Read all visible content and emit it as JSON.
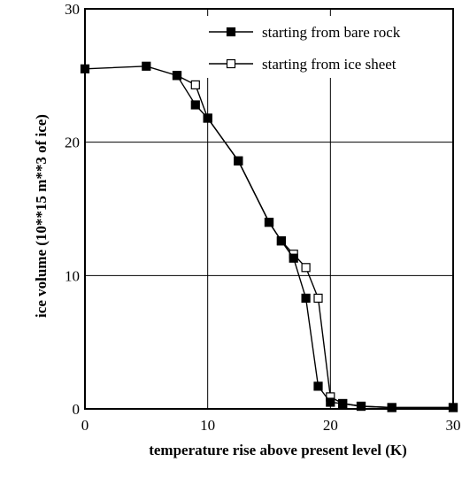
{
  "chart_data": {
    "type": "line",
    "xlabel": "temperature rise above present level (K)",
    "ylabel": "ice volume (10**15 m**3 of ice)",
    "xlim": [
      0,
      30
    ],
    "ylim": [
      0,
      30
    ],
    "xticks": [
      0,
      10,
      20,
      30
    ],
    "yticks": [
      0,
      10,
      20,
      30
    ],
    "grid": true,
    "legend_position": "top-right",
    "series": [
      {
        "name": "starting from bare rock",
        "marker": "filled-square",
        "x": [
          0,
          5,
          7.5,
          9,
          10,
          12.5,
          15,
          16,
          17,
          18,
          19,
          20,
          21,
          22.5,
          25,
          30
        ],
        "y": [
          25.5,
          25.7,
          25.0,
          22.8,
          21.8,
          18.6,
          14.0,
          12.6,
          11.3,
          8.3,
          1.7,
          0.5,
          0.4,
          0.2,
          0.1,
          0.1
        ]
      },
      {
        "name": "starting from ice sheet",
        "marker": "open-square",
        "x": [
          7.5,
          9,
          10,
          12.5,
          15,
          16,
          17,
          18,
          19,
          20,
          21,
          22.5,
          25,
          30
        ],
        "y": [
          25.0,
          24.3,
          21.8,
          18.6,
          14.0,
          12.6,
          11.6,
          10.6,
          8.3,
          0.9,
          0.4,
          0.2,
          0.1,
          0.1
        ]
      }
    ]
  }
}
